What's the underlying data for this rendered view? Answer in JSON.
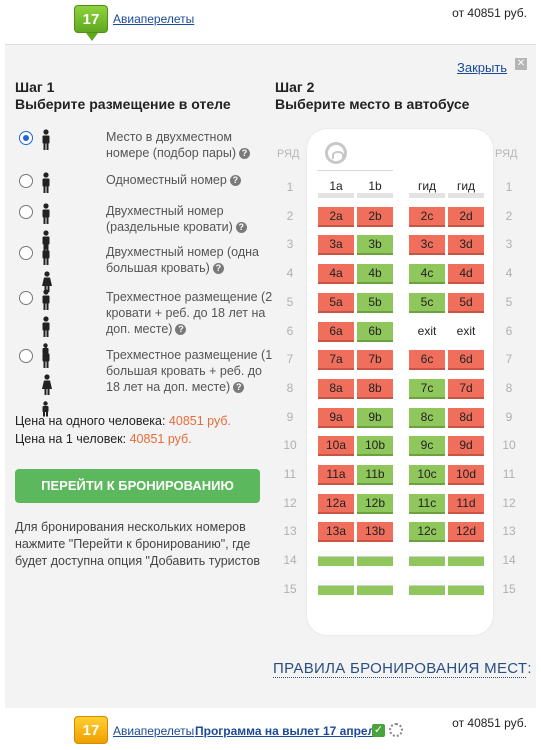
{
  "top": {
    "number": "17",
    "link": "Авиаперелеты",
    "price": "от 40851 руб."
  },
  "panel": {
    "close_label": "Закрыть",
    "step1": {
      "title": "Шаг 1",
      "subtitle": "Выберите размещение в отеле"
    },
    "step2": {
      "title": "Шаг 2",
      "subtitle": "Выберите место в автобусе"
    },
    "options": [
      {
        "label": "Место в двухместном номере (подбор пары)",
        "checked": true,
        "icons": "adult"
      },
      {
        "label": "Одноместный номер",
        "checked": false,
        "icons": "adult"
      },
      {
        "label": "Двухместный номер (раздельные кровати)",
        "checked": false,
        "icons": "adult-adult"
      },
      {
        "label": "Двухместный номер (одна большая кровать)",
        "checked": false,
        "icons": "adult-woman"
      },
      {
        "label": "Трехместное размещение (2 кровати + реб. до 18 лет на доп. месте)",
        "checked": false,
        "icons": "adult-adult-child"
      },
      {
        "label": "Трехместное размещение (1 большая кровать + реб. до 18 лет на доп. месте)",
        "checked": false,
        "icons": "adult-woman-child"
      }
    ],
    "price_one_label": "Цена на одного человека: ",
    "price_one_value": "40851 руб.",
    "price_1_label": "Цена на 1 человек: ",
    "price_1_value": "40851 руб.",
    "book_button": "ПЕРЕЙТИ К БРОНИРОВАНИЮ",
    "note": "Для бронирования нескольких номеров нажмите \"Перейти к бронированию\", где будет доступна опция \"Добавить туристов",
    "row_header": "РЯД",
    "rules": "ПРАВИЛА БРОНИРОВАНИЯ МЕСТ:"
  },
  "bus": {
    "rows": [
      {
        "n": "1",
        "seats": [
          {
            "l": "1a",
            "s": "white"
          },
          {
            "l": "1b",
            "s": "white"
          },
          {
            "l": "гид",
            "s": "white"
          },
          {
            "l": "гид",
            "s": "white"
          }
        ]
      },
      {
        "n": "2",
        "seats": [
          {
            "l": "2a",
            "s": "red"
          },
          {
            "l": "2b",
            "s": "red"
          },
          {
            "l": "2c",
            "s": "red"
          },
          {
            "l": "2d",
            "s": "red"
          }
        ]
      },
      {
        "n": "3",
        "seats": [
          {
            "l": "3a",
            "s": "red"
          },
          {
            "l": "3b",
            "s": "green"
          },
          {
            "l": "3c",
            "s": "red"
          },
          {
            "l": "3d",
            "s": "red"
          }
        ]
      },
      {
        "n": "4",
        "seats": [
          {
            "l": "4a",
            "s": "red"
          },
          {
            "l": "4b",
            "s": "green"
          },
          {
            "l": "4c",
            "s": "green"
          },
          {
            "l": "4d",
            "s": "red"
          }
        ]
      },
      {
        "n": "5",
        "seats": [
          {
            "l": "5a",
            "s": "red"
          },
          {
            "l": "5b",
            "s": "green"
          },
          {
            "l": "5c",
            "s": "green"
          },
          {
            "l": "5d",
            "s": "red"
          }
        ]
      },
      {
        "n": "6",
        "seats": [
          {
            "l": "6a",
            "s": "red"
          },
          {
            "l": "6b",
            "s": "green"
          },
          {
            "l": "exit",
            "s": "exit"
          },
          {
            "l": "exit",
            "s": "exit"
          }
        ]
      },
      {
        "n": "7",
        "seats": [
          {
            "l": "7a",
            "s": "red"
          },
          {
            "l": "7b",
            "s": "red"
          },
          {
            "l": "6c",
            "s": "red"
          },
          {
            "l": "6d",
            "s": "red"
          }
        ]
      },
      {
        "n": "8",
        "seats": [
          {
            "l": "8a",
            "s": "red"
          },
          {
            "l": "8b",
            "s": "red"
          },
          {
            "l": "7c",
            "s": "green"
          },
          {
            "l": "7d",
            "s": "red"
          }
        ]
      },
      {
        "n": "9",
        "seats": [
          {
            "l": "9a",
            "s": "red"
          },
          {
            "l": "9b",
            "s": "green"
          },
          {
            "l": "8c",
            "s": "green"
          },
          {
            "l": "8d",
            "s": "red"
          }
        ]
      },
      {
        "n": "10",
        "seats": [
          {
            "l": "10a",
            "s": "red"
          },
          {
            "l": "10b",
            "s": "green"
          },
          {
            "l": "9c",
            "s": "green"
          },
          {
            "l": "9d",
            "s": "red"
          }
        ]
      },
      {
        "n": "11",
        "seats": [
          {
            "l": "11a",
            "s": "red"
          },
          {
            "l": "11b",
            "s": "green"
          },
          {
            "l": "10c",
            "s": "green"
          },
          {
            "l": "10d",
            "s": "red"
          }
        ]
      },
      {
        "n": "12",
        "seats": [
          {
            "l": "12a",
            "s": "red"
          },
          {
            "l": "12b",
            "s": "green"
          },
          {
            "l": "11c",
            "s": "green"
          },
          {
            "l": "11d",
            "s": "red"
          }
        ]
      },
      {
        "n": "13",
        "seats": [
          {
            "l": "13a",
            "s": "red"
          },
          {
            "l": "13b",
            "s": "red"
          },
          {
            "l": "12c",
            "s": "green"
          },
          {
            "l": "12d",
            "s": "red"
          }
        ]
      },
      {
        "n": "14",
        "seats": [
          {
            "l": "",
            "s": "empty"
          },
          {
            "l": "",
            "s": "empty"
          },
          {
            "l": "",
            "s": "empty"
          },
          {
            "l": "",
            "s": "empty"
          }
        ]
      },
      {
        "n": "15",
        "seats": [
          {
            "l": "",
            "s": "empty"
          },
          {
            "l": "",
            "s": "empty"
          },
          {
            "l": "",
            "s": "empty"
          },
          {
            "l": "",
            "s": "empty"
          }
        ]
      }
    ]
  },
  "bottom": {
    "number": "17",
    "link": "Авиаперелеты",
    "program": "Программа на вылет 17 апреля",
    "price": "от 40851 руб."
  },
  "colors": {
    "taken": "#ef6f5c",
    "free": "#8fc75c",
    "accent": "#5cb85c",
    "price": "#e86b3a"
  }
}
